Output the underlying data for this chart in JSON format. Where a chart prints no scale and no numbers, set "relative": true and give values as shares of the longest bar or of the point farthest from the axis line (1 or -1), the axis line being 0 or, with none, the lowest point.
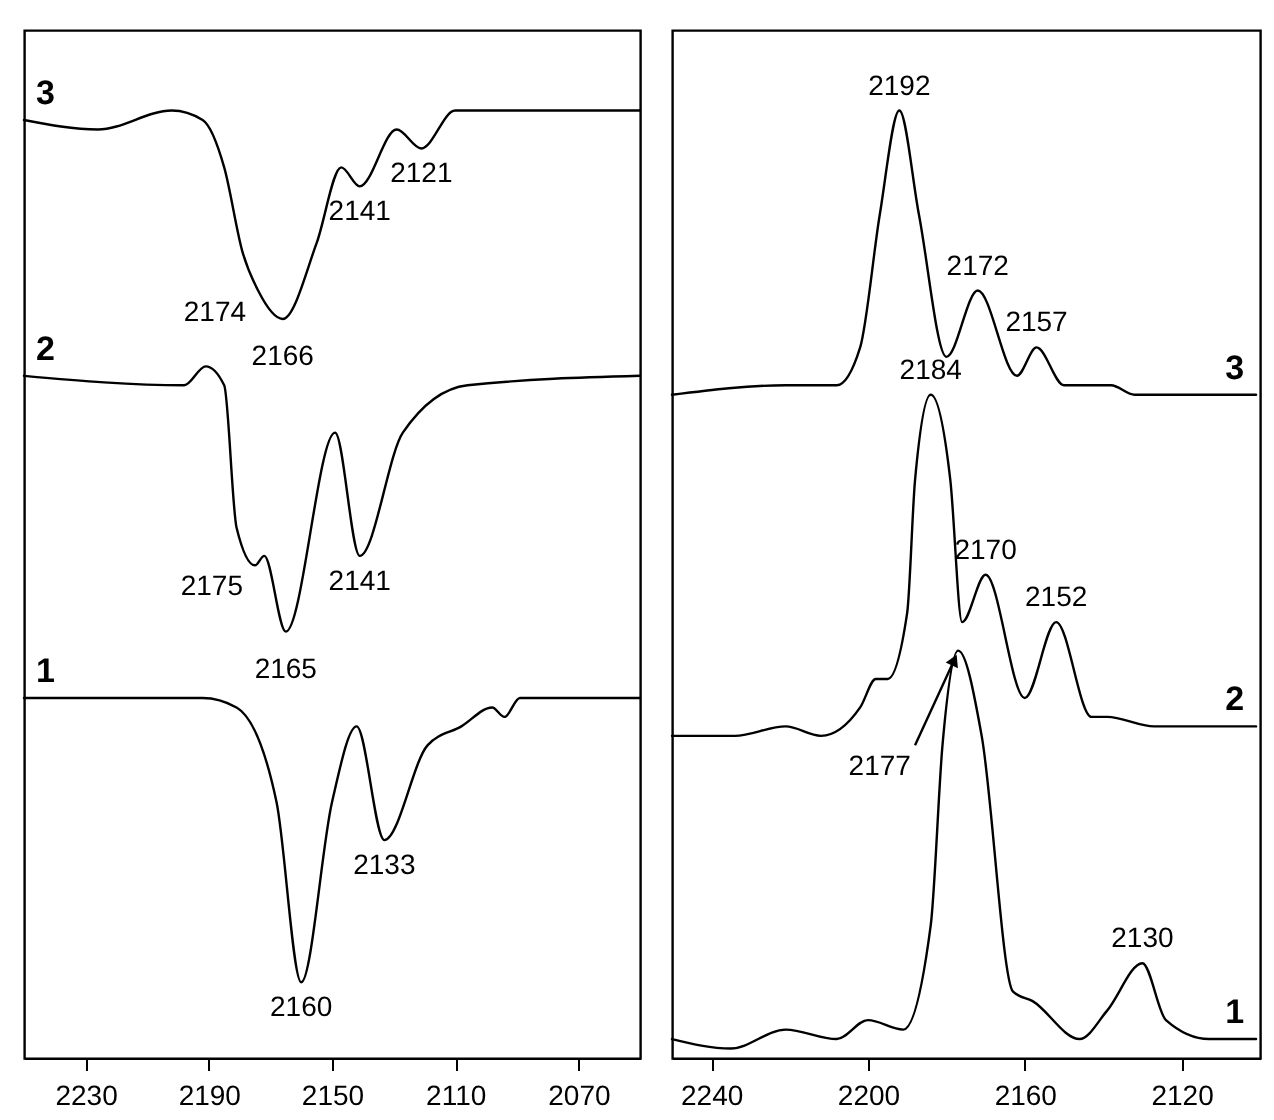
{
  "chart_data": [
    {
      "type": "line",
      "relative": true,
      "xlim": [
        2250,
        2050
      ],
      "xticks": [
        2230,
        2190,
        2150,
        2110,
        2070
      ],
      "grid": false,
      "legend": false,
      "tick_labels": "x",
      "series": [
        {
          "name": "3",
          "color": "#000000",
          "x": [
            2250,
            2226,
            2202,
            2192,
            2185,
            2179,
            2174,
            2166,
            2155,
            2147,
            2141,
            2129,
            2121,
            2110,
            2050
          ],
          "values": [
            0.99,
            0.98,
            1.0,
            0.99,
            0.94,
            0.85,
            0.81,
            0.78,
            0.86,
            0.94,
            0.92,
            0.98,
            0.96,
            1.0,
            1.0
          ]
        },
        {
          "name": "2",
          "color": "#000000",
          "x": [
            2250,
            2198,
            2191,
            2185,
            2181,
            2175,
            2172,
            2165,
            2149,
            2141,
            2127,
            2106,
            2050
          ],
          "values": [
            0.72,
            0.71,
            0.73,
            0.71,
            0.56,
            0.52,
            0.53,
            0.45,
            0.66,
            0.53,
            0.66,
            0.71,
            0.72
          ]
        },
        {
          "name": "1",
          "color": "#000000",
          "x": [
            2250,
            2192,
            2181,
            2168,
            2160,
            2150,
            2142,
            2133,
            2119,
            2108,
            2098,
            2094,
            2089,
            2050
          ],
          "values": [
            0.38,
            0.38,
            0.37,
            0.27,
            0.08,
            0.27,
            0.35,
            0.23,
            0.33,
            0.35,
            0.37,
            0.36,
            0.38,
            0.38
          ]
        }
      ],
      "annotations": [
        {
          "text": "2174",
          "x": 2174,
          "y": 0.81
        },
        {
          "text": "2166",
          "x": 2166,
          "y": 0.78
        },
        {
          "text": "2141",
          "x": 2141,
          "y": 0.92
        },
        {
          "text": "2121",
          "x": 2121,
          "y": 0.96
        },
        {
          "text": "2175",
          "x": 2175,
          "y": 0.52
        },
        {
          "text": "2165",
          "x": 2165,
          "y": 0.45
        },
        {
          "text": "2141",
          "x": 2141,
          "y": 0.53
        },
        {
          "text": "2160",
          "x": 2160,
          "y": 0.08
        },
        {
          "text": "2133",
          "x": 2133,
          "y": 0.23
        }
      ]
    },
    {
      "type": "line",
      "relative": true,
      "xlim": [
        2250,
        2100
      ],
      "xticks": [
        2240,
        2200,
        2160,
        2120
      ],
      "grid": false,
      "legend": false,
      "tick_labels": "x",
      "series": [
        {
          "name": "3",
          "color": "#000000",
          "x": [
            2250,
            2221,
            2208,
            2202,
            2197,
            2192,
            2187,
            2180,
            2172,
            2162,
            2157,
            2150,
            2138,
            2132,
            2101
          ],
          "values": [
            0.7,
            0.71,
            0.71,
            0.75,
            0.89,
            1.0,
            0.89,
            0.74,
            0.81,
            0.72,
            0.75,
            0.71,
            0.71,
            0.7,
            0.7
          ]
        },
        {
          "name": "2",
          "color": "#000000",
          "x": [
            2250,
            2234,
            2221,
            2212,
            2202,
            2198,
            2195,
            2190,
            2188,
            2184,
            2179,
            2176,
            2170,
            2160,
            2152,
            2143,
            2139,
            2127,
            2101
          ],
          "values": [
            0.34,
            0.34,
            0.35,
            0.34,
            0.37,
            0.4,
            0.4,
            0.47,
            0.61,
            0.7,
            0.61,
            0.46,
            0.51,
            0.38,
            0.46,
            0.36,
            0.36,
            0.35,
            0.35
          ]
        },
        {
          "name": "1",
          "color": "#000000",
          "x": [
            2250,
            2235,
            2221,
            2208,
            2200,
            2191,
            2184,
            2181,
            2177,
            2171,
            2163,
            2158,
            2146,
            2139,
            2130,
            2124,
            2113,
            2101
          ],
          "values": [
            0.02,
            0.01,
            0.03,
            0.02,
            0.04,
            0.03,
            0.14,
            0.33,
            0.43,
            0.34,
            0.07,
            0.06,
            0.02,
            0.05,
            0.1,
            0.04,
            0.02,
            0.02
          ]
        }
      ],
      "annotations": [
        {
          "text": "2192",
          "x": 2192,
          "y": 1.0
        },
        {
          "text": "2172",
          "x": 2172,
          "y": 0.81
        },
        {
          "text": "2157",
          "x": 2157,
          "y": 0.75
        },
        {
          "text": "2184",
          "x": 2184,
          "y": 0.7
        },
        {
          "text": "2170",
          "x": 2170,
          "y": 0.51
        },
        {
          "text": "2152",
          "x": 2152,
          "y": 0.46
        },
        {
          "text": "2177",
          "x": 2177,
          "y": 0.43
        },
        {
          "text": "2130",
          "x": 2130,
          "y": 0.1
        }
      ]
    }
  ]
}
